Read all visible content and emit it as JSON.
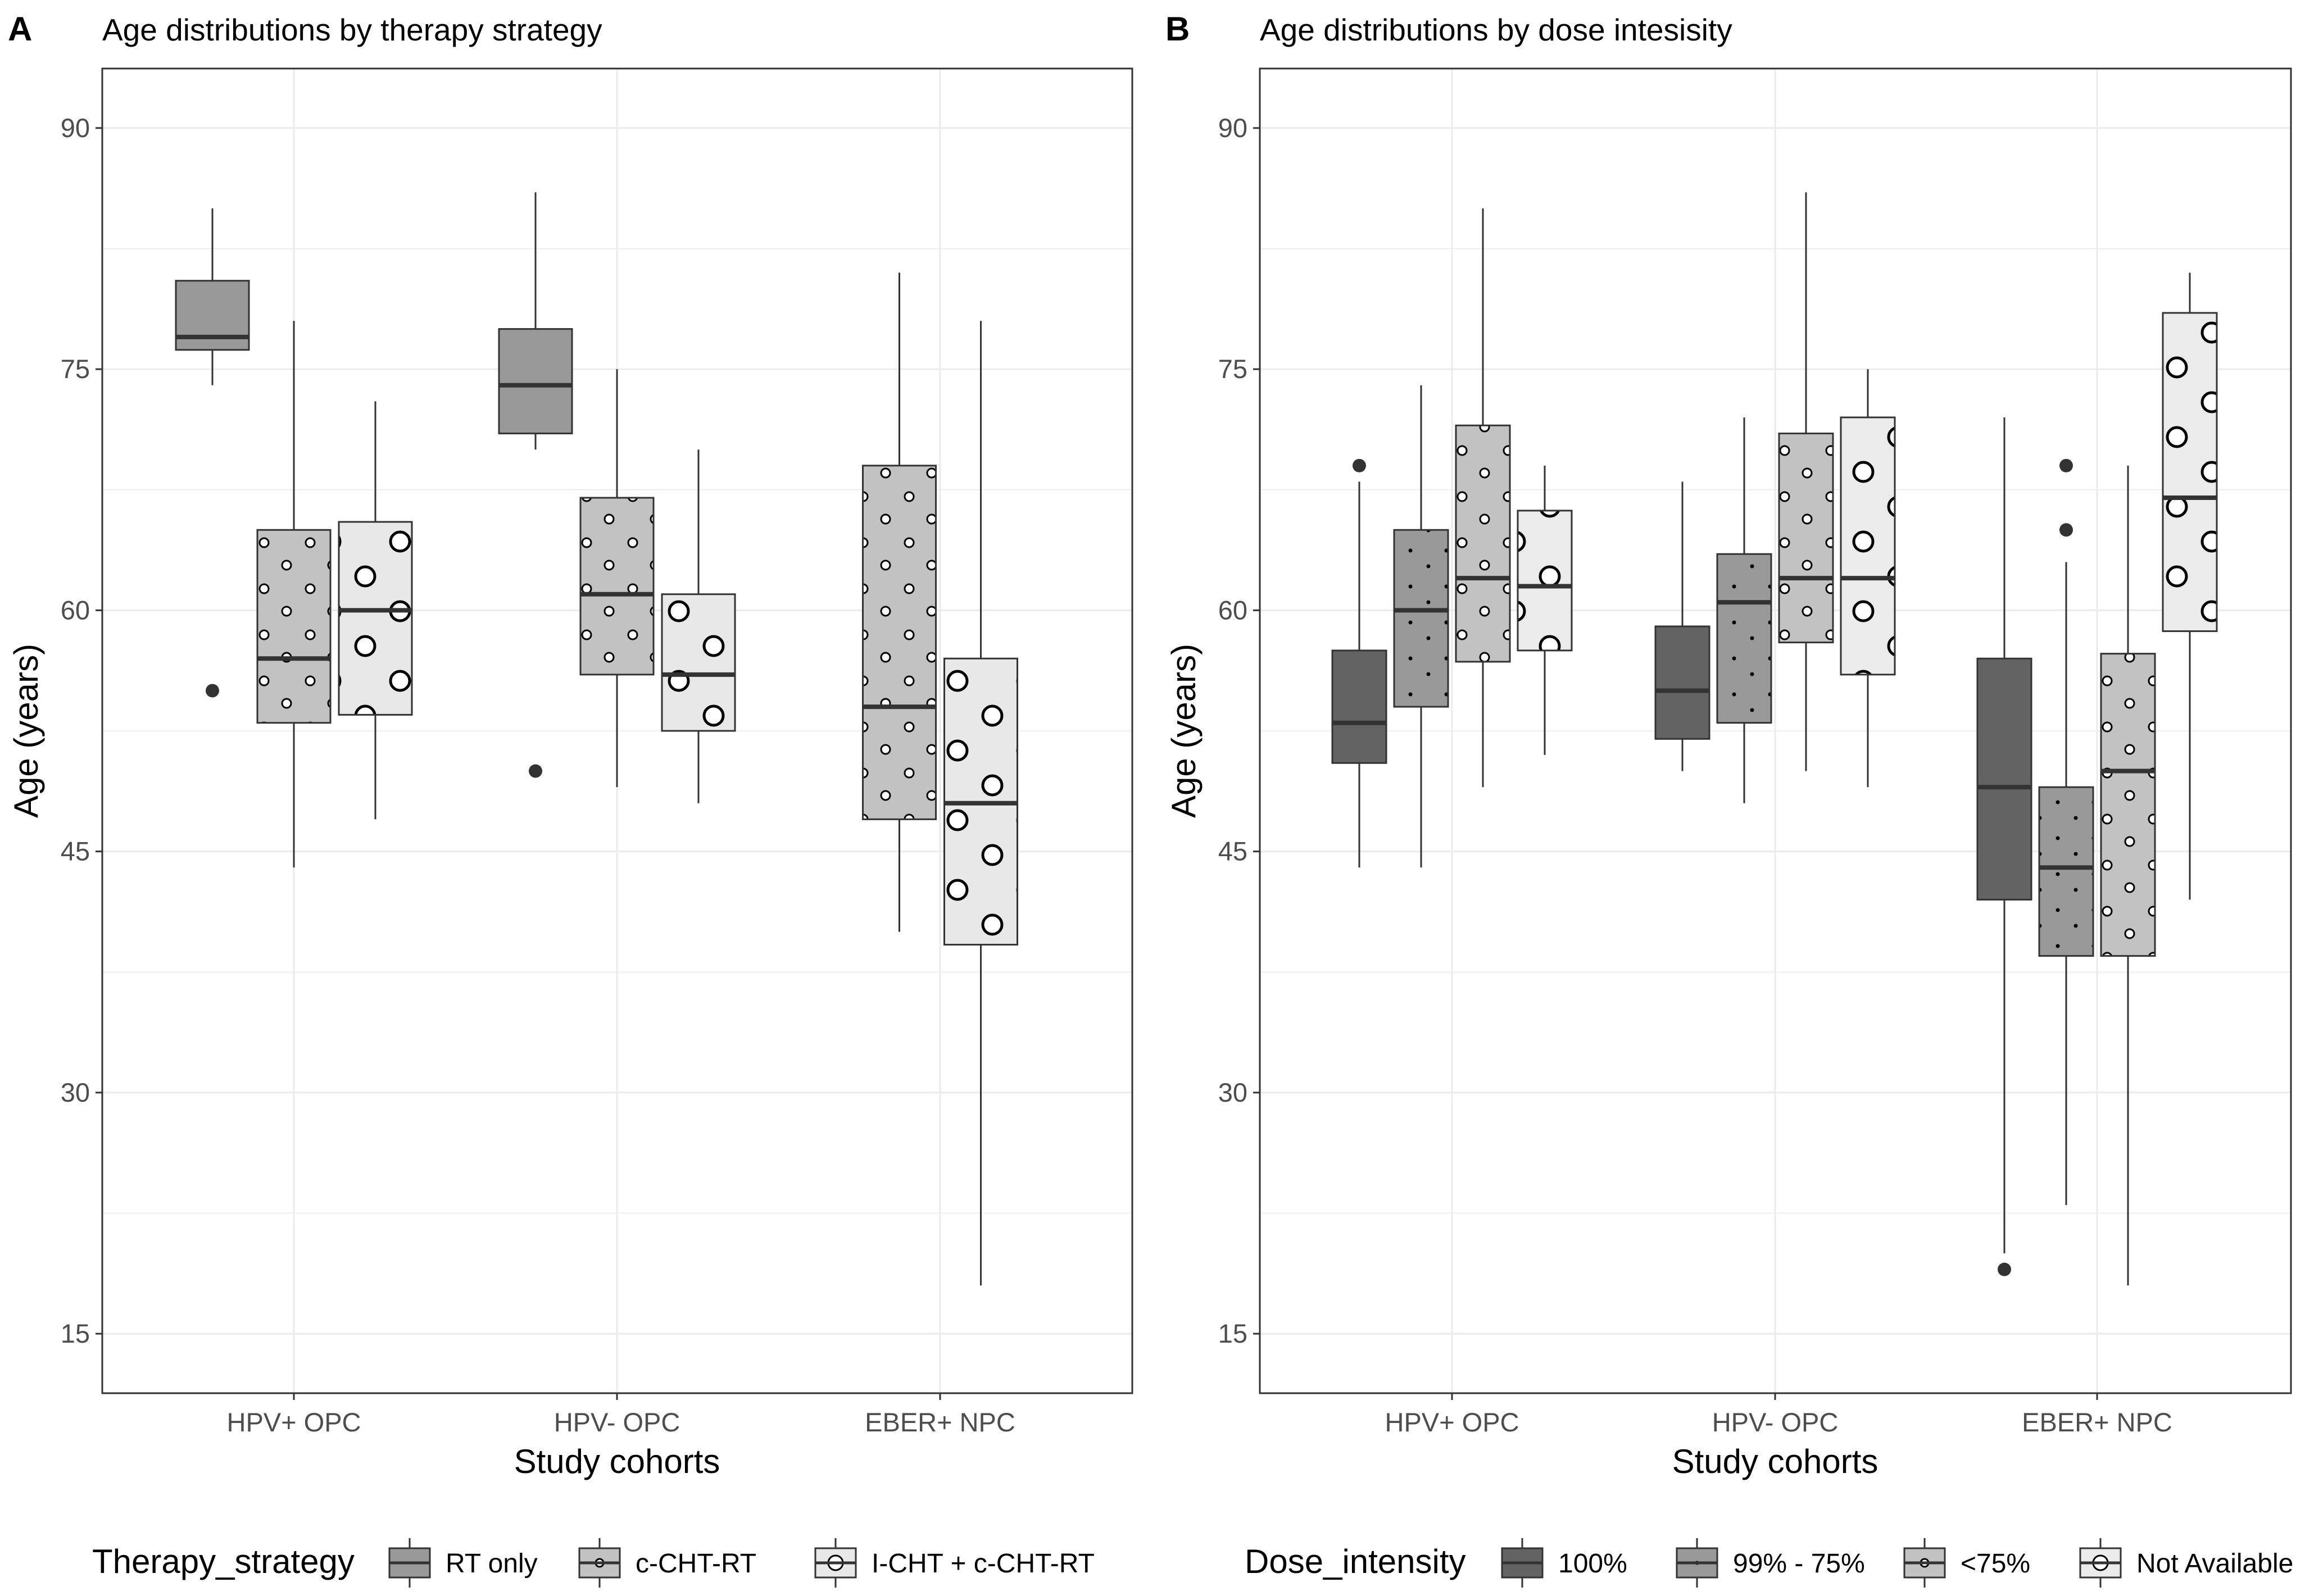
{
  "chart_data": [
    {
      "type": "boxplot",
      "panel_label": "A",
      "title": "Age distributions by therapy strategy",
      "xlabel": "Study cohorts",
      "ylabel": "Age (years)",
      "ylim": [
        11.3,
        93.7
      ],
      "yticks": [
        15,
        30,
        45,
        60,
        75,
        90
      ],
      "grid": true,
      "categories": [
        "HPV+ OPC",
        "HPV- OPC",
        "EBER+ NPC"
      ],
      "legend": {
        "title": "Therapy_strategy",
        "position": "bottom",
        "entries": [
          "RT only",
          "c-CHT-RT",
          "I-CHT + c-CHT-RT"
        ]
      },
      "series": [
        {
          "name": "RT only",
          "fill": "#999999",
          "pattern": "none",
          "boxes": [
            {
              "category": "HPV+ OPC",
              "lower_whisker": 74,
              "q1": 76.2,
              "median": 77,
              "q3": 80.5,
              "upper_whisker": 85,
              "outliers": [
                55
              ]
            },
            {
              "category": "HPV- OPC",
              "lower_whisker": 70,
              "q1": 71,
              "median": 74,
              "q3": 77.5,
              "upper_whisker": 86,
              "outliers": [
                50
              ]
            }
          ]
        },
        {
          "name": "c-CHT-RT",
          "fill": "#c2c2c2",
          "pattern": "small-dots",
          "boxes": [
            {
              "category": "HPV+ OPC",
              "lower_whisker": 44,
              "q1": 53,
              "median": 57,
              "q3": 65,
              "upper_whisker": 78,
              "outliers": []
            },
            {
              "category": "HPV- OPC",
              "lower_whisker": 49,
              "q1": 56,
              "median": 61,
              "q3": 67,
              "upper_whisker": 75,
              "outliers": []
            },
            {
              "category": "EBER+ NPC",
              "lower_whisker": 40,
              "q1": 47,
              "median": 54,
              "q3": 69,
              "upper_whisker": 81,
              "outliers": []
            }
          ]
        },
        {
          "name": "I-CHT + c-CHT-RT",
          "fill": "#e8e8e8",
          "pattern": "large-circles",
          "boxes": [
            {
              "category": "HPV+ OPC",
              "lower_whisker": 47,
              "q1": 53.5,
              "median": 60,
              "q3": 65.5,
              "upper_whisker": 73,
              "outliers": []
            },
            {
              "category": "HPV- OPC",
              "lower_whisker": 48,
              "q1": 52.5,
              "median": 56,
              "q3": 61,
              "upper_whisker": 70,
              "outliers": []
            },
            {
              "category": "EBER+ NPC",
              "lower_whisker": 18,
              "q1": 39.2,
              "median": 48,
              "q3": 57,
              "upper_whisker": 78,
              "outliers": []
            }
          ]
        }
      ]
    },
    {
      "type": "boxplot",
      "panel_label": "B",
      "title": "Age distributions by dose intesisity",
      "xlabel": "Study cohorts",
      "ylabel": "Age (years)",
      "ylim": [
        11.3,
        93.7
      ],
      "yticks": [
        15,
        30,
        45,
        60,
        75,
        90
      ],
      "grid": true,
      "categories": [
        "HPV+ OPC",
        "HPV- OPC",
        "EBER+ NPC"
      ],
      "legend": {
        "title": "Dose_intensity",
        "position": "bottom",
        "entries": [
          "100%",
          "99% - 75%",
          "<75%",
          "Not Available"
        ]
      },
      "series": [
        {
          "name": "100%",
          "fill": "#636363",
          "pattern": "none",
          "boxes": [
            {
              "category": "HPV+ OPC",
              "lower_whisker": 44,
              "q1": 50.5,
              "median": 53,
              "q3": 57.5,
              "upper_whisker": 68,
              "outliers": [
                69
              ]
            },
            {
              "category": "HPV- OPC",
              "lower_whisker": 50,
              "q1": 52,
              "median": 55,
              "q3": 59,
              "upper_whisker": 68,
              "outliers": []
            },
            {
              "category": "EBER+ NPC",
              "lower_whisker": 20,
              "q1": 42,
              "median": 49,
              "q3": 57,
              "upper_whisker": 72,
              "outliers": [
                19
              ]
            }
          ]
        },
        {
          "name": "99% - 75%",
          "fill": "#999999",
          "pattern": "tiny-dots",
          "boxes": [
            {
              "category": "HPV+ OPC",
              "lower_whisker": 44,
              "q1": 54,
              "median": 60,
              "q3": 65,
              "upper_whisker": 74,
              "outliers": []
            },
            {
              "category": "HPV- OPC",
              "lower_whisker": 48,
              "q1": 53,
              "median": 60.5,
              "q3": 63.5,
              "upper_whisker": 72,
              "outliers": []
            },
            {
              "category": "EBER+ NPC",
              "lower_whisker": 23,
              "q1": 38.5,
              "median": 44,
              "q3": 49,
              "upper_whisker": 63,
              "outliers": [
                65,
                69
              ]
            }
          ]
        },
        {
          "name": "<75%",
          "fill": "#c2c2c2",
          "pattern": "small-dots",
          "boxes": [
            {
              "category": "HPV+ OPC",
              "lower_whisker": 49,
              "q1": 56.8,
              "median": 62,
              "q3": 71.5,
              "upper_whisker": 85,
              "outliers": []
            },
            {
              "category": "HPV- OPC",
              "lower_whisker": 50,
              "q1": 58,
              "median": 62,
              "q3": 71,
              "upper_whisker": 86,
              "outliers": []
            },
            {
              "category": "EBER+ NPC",
              "lower_whisker": 18,
              "q1": 38.5,
              "median": 50,
              "q3": 57.3,
              "upper_whisker": 69,
              "outliers": []
            }
          ]
        },
        {
          "name": "Not Available",
          "fill": "#ebebeb",
          "pattern": "large-circles",
          "boxes": [
            {
              "category": "HPV+ OPC",
              "lower_whisker": 51,
              "q1": 57.5,
              "median": 61.5,
              "q3": 66.2,
              "upper_whisker": 69,
              "outliers": []
            },
            {
              "category": "HPV- OPC",
              "lower_whisker": 49,
              "q1": 56,
              "median": 62,
              "q3": 72,
              "upper_whisker": 75,
              "outliers": []
            },
            {
              "category": "EBER+ NPC",
              "lower_whisker": 42,
              "q1": 58.7,
              "median": 67,
              "q3": 78.5,
              "upper_whisker": 81,
              "outliers": []
            }
          ]
        }
      ]
    }
  ]
}
